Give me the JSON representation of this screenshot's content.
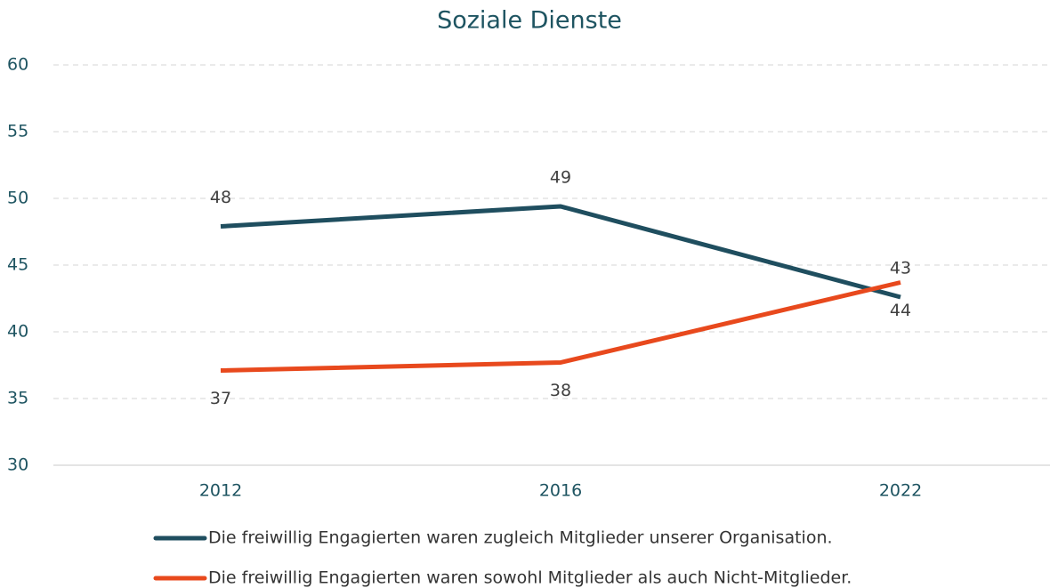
{
  "chart_data": {
    "type": "line",
    "title": "Soziale Dienste",
    "categories": [
      "2012",
      "2016",
      "2022"
    ],
    "series": [
      {
        "name": "Die freiwillig Engagierten waren zugleich Mitglieder unserer Organisation.",
        "color": "#1f4e5f",
        "values": [
          47.9,
          49.4,
          42.6
        ],
        "value_labels": [
          "48",
          "49",
          "43"
        ]
      },
      {
        "name": "Die freiwillig Engagierten waren sowohl Mitglieder als auch Nicht-Mitglieder.",
        "color": "#e8491d",
        "values": [
          37.1,
          37.7,
          43.7
        ],
        "value_labels": [
          "37",
          "38",
          "44"
        ]
      }
    ],
    "ylim": [
      30,
      60
    ],
    "yticks": [
      30,
      35,
      40,
      45,
      50,
      55,
      60
    ],
    "grid": true
  }
}
